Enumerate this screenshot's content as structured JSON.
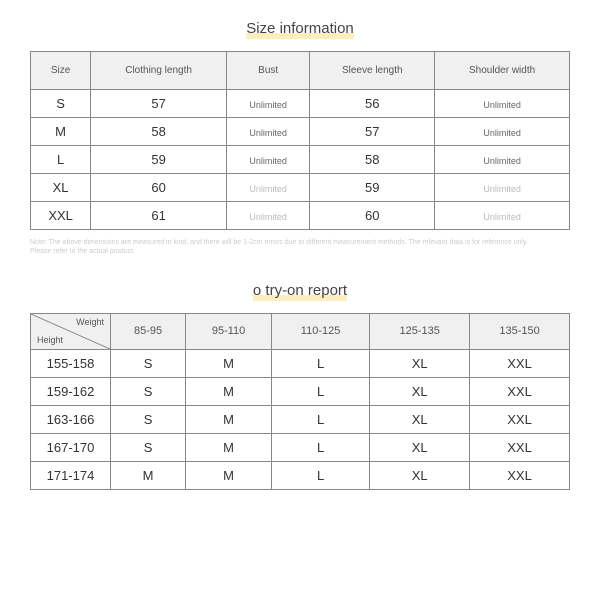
{
  "section1": {
    "title": "Size information",
    "columns": [
      "Size",
      "Clothing length",
      "Bust",
      "Sleeve length",
      "Shoulder width"
    ],
    "rows": [
      {
        "size": "S",
        "clothing": "57",
        "bust": "Unlimited",
        "bust_grey": false,
        "sleeve": "56",
        "shoulder": "Unlimited",
        "shoulder_grey": false
      },
      {
        "size": "M",
        "clothing": "58",
        "bust": "Unlimited",
        "bust_grey": false,
        "sleeve": "57",
        "shoulder": "Unlimited",
        "shoulder_grey": false
      },
      {
        "size": "L",
        "clothing": "59",
        "bust": "Unlimited",
        "bust_grey": false,
        "sleeve": "58",
        "shoulder": "Unlimited",
        "shoulder_grey": false
      },
      {
        "size": "XL",
        "clothing": "60",
        "bust": "Unlimited",
        "bust_grey": true,
        "sleeve": "59",
        "shoulder": "Unlimited",
        "shoulder_grey": true
      },
      {
        "size": "XXL",
        "clothing": "61",
        "bust": "Unlimited",
        "bust_grey": true,
        "sleeve": "60",
        "shoulder": "Unlimited",
        "shoulder_grey": true
      }
    ],
    "note_line1": "Note: The above dimensions are measured in kind, and there will be 1-2cm errors due to different measurement methods. The relevant data is for reference only.",
    "note_line2": "Please refer to the actual product."
  },
  "section2": {
    "title": "o try-on report",
    "diag_weight": "Weight",
    "diag_height": "Height",
    "weight_cols": [
      "85-95",
      "95-110",
      "110-125",
      "125-135",
      "135-150"
    ],
    "rows": [
      {
        "h": "155-158",
        "v": [
          "S",
          "M",
          "L",
          "XL",
          "XXL"
        ]
      },
      {
        "h": "159-162",
        "v": [
          "S",
          "M",
          "L",
          "XL",
          "XXL"
        ]
      },
      {
        "h": "163-166",
        "v": [
          "S",
          "M",
          "L",
          "XL",
          "XXL"
        ]
      },
      {
        "h": "167-170",
        "v": [
          "S",
          "M",
          "L",
          "XL",
          "XXL"
        ]
      },
      {
        "h": "171-174",
        "v": [
          "M",
          "M",
          "L",
          "XL",
          "XXL"
        ]
      }
    ]
  }
}
